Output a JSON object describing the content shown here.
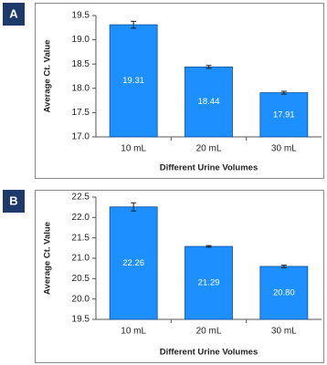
{
  "chart_data": [
    {
      "type": "bar",
      "panel_label": "A",
      "xlabel": "Different Urine Volumes",
      "ylabel": "Average Ct. Value",
      "categories": [
        "10 mL",
        "20 mL",
        "30 mL"
      ],
      "values": [
        19.31,
        18.44,
        17.91
      ],
      "errors": [
        0.07,
        0.03,
        0.03
      ],
      "color": "#1e8fff",
      "ylim": [
        17,
        19.5
      ],
      "yticks": [
        {
          "value": 17,
          "label": "17.0"
        },
        {
          "value": 17.5,
          "label": "17.5"
        },
        {
          "value": 18,
          "label": "18.0"
        },
        {
          "value": 18.5,
          "label": "18.5"
        },
        {
          "value": 19,
          "label": "19.0"
        },
        {
          "value": 19.5,
          "label": "19.5"
        }
      ]
    },
    {
      "type": "bar",
      "panel_label": "B",
      "xlabel": "Different Urine Volumes",
      "ylabel": "Average Ct. Value",
      "categories": [
        "10 mL",
        "20 mL",
        "30 mL"
      ],
      "values": [
        22.26,
        21.29,
        20.8
      ],
      "value_labels": [
        "22.26",
        "21.29",
        "20.80"
      ],
      "errors": [
        0.1,
        0.02,
        0.03
      ],
      "color": "#1e8fff",
      "ylim": [
        19.5,
        22.5
      ],
      "yticks": [
        {
          "value": 19.5,
          "label": "19.5"
        },
        {
          "value": 20,
          "label": "20.0"
        },
        {
          "value": 20.5,
          "label": "20.5"
        },
        {
          "value": 21,
          "label": "21.0"
        },
        {
          "value": 21.5,
          "label": "21.5"
        },
        {
          "value": 22,
          "label": "22.0"
        },
        {
          "value": 22.5,
          "label": "22.5"
        }
      ]
    }
  ]
}
